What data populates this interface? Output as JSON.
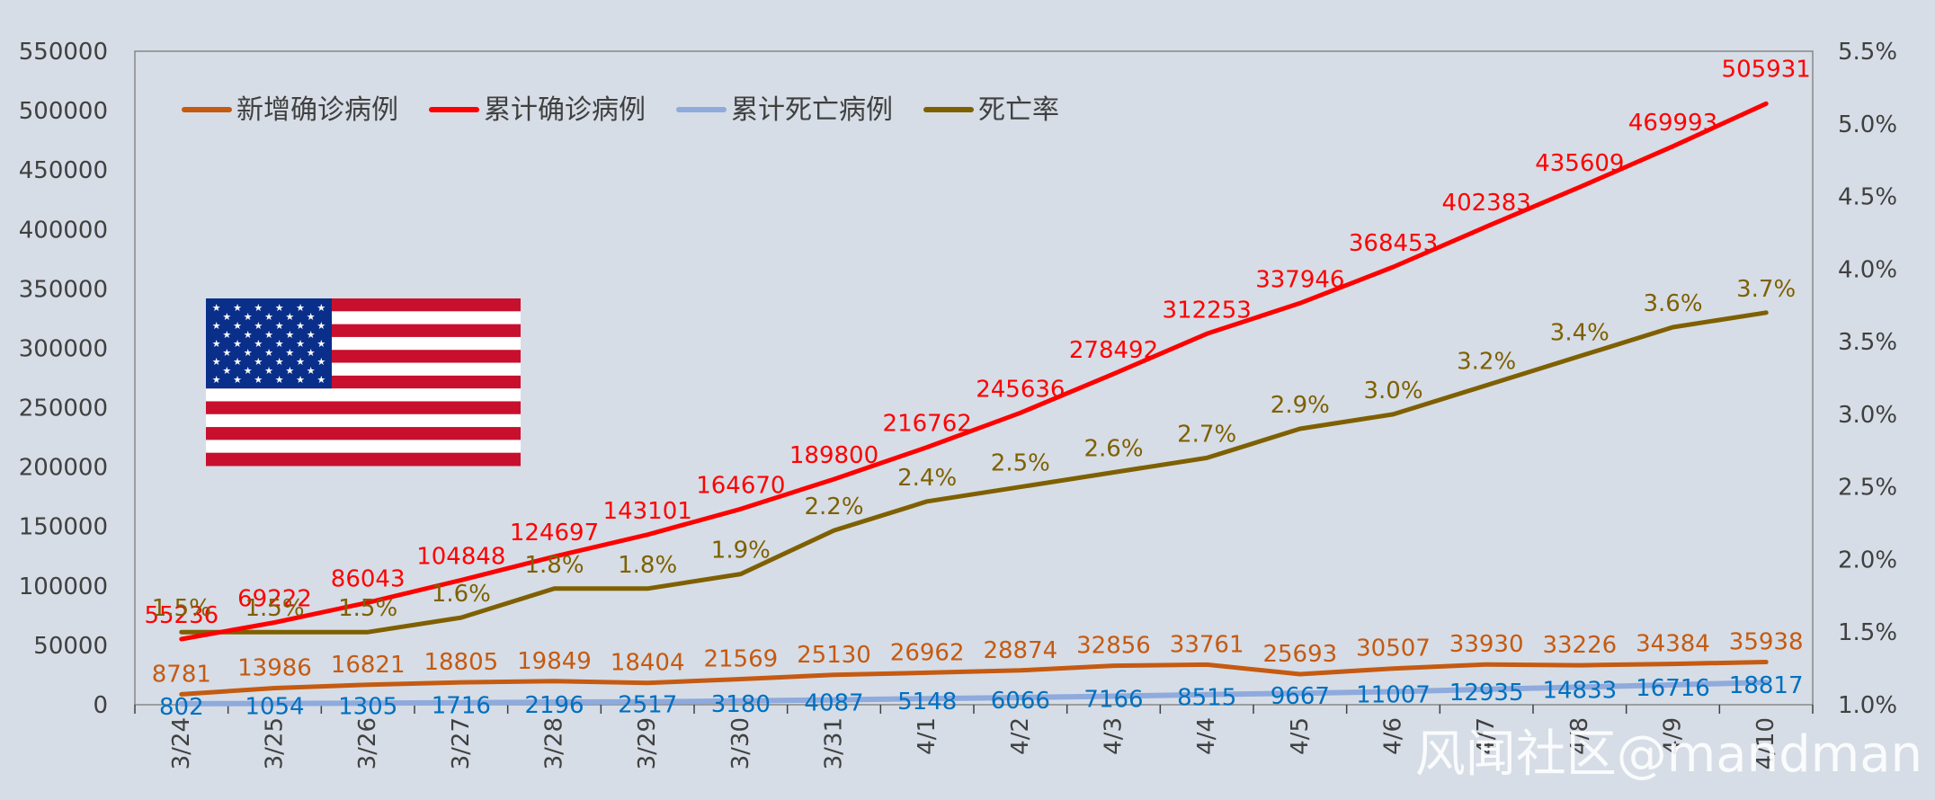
{
  "colors": {
    "background": "#d6dde6",
    "new_cases": "#c55a11",
    "cumulative_cases": "#ff0000",
    "cumulative_deaths": "#8faadc",
    "death_rate": "#7f6000",
    "deaths_label": "#0070c0"
  },
  "watermark": "风闻社区@mandman",
  "flag": {
    "icon": "us-flag-icon"
  },
  "chart_data": {
    "type": "line",
    "title": "",
    "xlabel": "",
    "ylabel": "",
    "categories": [
      "3/24",
      "3/25",
      "3/26",
      "3/27",
      "3/28",
      "3/29",
      "3/30",
      "3/31",
      "4/1",
      "4/2",
      "4/3",
      "4/4",
      "4/5",
      "4/6",
      "4/7",
      "4/8",
      "4/9",
      "4/10"
    ],
    "ylim": [
      0,
      550000
    ],
    "y_ticks": [
      "0",
      "50000",
      "100000",
      "150000",
      "200000",
      "250000",
      "300000",
      "350000",
      "400000",
      "450000",
      "500000",
      "550000"
    ],
    "y2lim": [
      1.0,
      5.5
    ],
    "y2_ticks": [
      "1.0%",
      "1.5%",
      "2.0%",
      "2.5%",
      "3.0%",
      "3.5%",
      "4.0%",
      "4.5%",
      "5.0%",
      "5.5%"
    ],
    "legend_position": "top-left",
    "grid": false,
    "series": [
      {
        "name": "新增确诊病例",
        "axis": "left",
        "values": [
          8781,
          13986,
          16821,
          18805,
          19849,
          18404,
          21569,
          25130,
          26962,
          28874,
          32856,
          33761,
          25693,
          30507,
          33930,
          33226,
          34384,
          35938
        ],
        "labels": [
          "8781",
          "13986",
          "16821",
          "18805",
          "19849",
          "18404",
          "21569",
          "25130",
          "26962",
          "28874",
          "32856",
          "33761",
          "25693",
          "30507",
          "33930",
          "33226",
          "34384",
          "35938"
        ]
      },
      {
        "name": "累计确诊病例",
        "axis": "left",
        "values": [
          55236,
          69222,
          86043,
          104848,
          124697,
          143101,
          164670,
          189800,
          216762,
          245636,
          278492,
          312253,
          337946,
          368453,
          402383,
          435609,
          469993,
          505931
        ],
        "labels": [
          "55236",
          "69222",
          "86043",
          "104848",
          "124697",
          "143101",
          "164670",
          "189800",
          "216762",
          "245636",
          "278492",
          "312253",
          "337946",
          "368453",
          "402383",
          "435609",
          "469993",
          "505931"
        ]
      },
      {
        "name": "累计死亡病例",
        "axis": "left",
        "values": [
          802,
          1054,
          1305,
          1716,
          2196,
          2517,
          3180,
          4087,
          5148,
          6066,
          7166,
          8515,
          9667,
          11007,
          12935,
          14833,
          16716,
          18817
        ],
        "labels": [
          "802",
          "1054",
          "1305",
          "1716",
          "2196",
          "2517",
          "3180",
          "4087",
          "5148",
          "6066",
          "7166",
          "8515",
          "9667",
          "11007",
          "12935",
          "14833",
          "16716",
          "18817"
        ]
      },
      {
        "name": "死亡率",
        "axis": "right",
        "values": [
          1.5,
          1.5,
          1.5,
          1.6,
          1.8,
          1.8,
          1.9,
          2.2,
          2.4,
          2.5,
          2.6,
          2.7,
          2.9,
          3.0,
          3.2,
          3.4,
          3.6,
          3.7
        ],
        "labels": [
          "1.5%",
          "1.5%",
          "1.5%",
          "1.6%",
          "1.8%",
          "1.8%",
          "1.9%",
          "2.2%",
          "2.4%",
          "2.5%",
          "2.6%",
          "2.7%",
          "2.9%",
          "3.0%",
          "3.2%",
          "3.4%",
          "3.6%",
          "3.7%"
        ]
      }
    ]
  }
}
